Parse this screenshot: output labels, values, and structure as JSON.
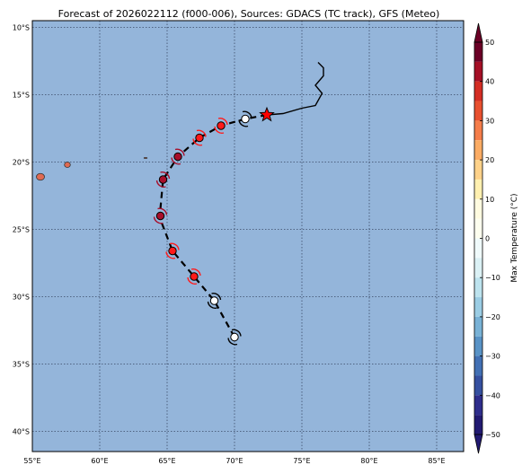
{
  "title": "Forecast of 2026022112 (f000-006), Sources: GDACS (TC track), GFS (Meteo)",
  "map": {
    "lon_range": [
      55,
      87
    ],
    "lat_range": [
      -41.5,
      -9.5
    ],
    "ocean_color": "#94b5da",
    "land_color": "#e06a52",
    "grid": "dotted",
    "x_ticks": [
      {
        "value": 55,
        "label": "55°E"
      },
      {
        "value": 60,
        "label": "60°E"
      },
      {
        "value": 65,
        "label": "65°E"
      },
      {
        "value": 70,
        "label": "70°E"
      },
      {
        "value": 75,
        "label": "75°E"
      },
      {
        "value": 80,
        "label": "80°E"
      },
      {
        "value": 85,
        "label": "85°E"
      }
    ],
    "y_ticks": [
      {
        "value": -10,
        "label": "10°S"
      },
      {
        "value": -15,
        "label": "15°S"
      },
      {
        "value": -20,
        "label": "20°S"
      },
      {
        "value": -25,
        "label": "25°S"
      },
      {
        "value": -30,
        "label": "30°S"
      },
      {
        "value": -35,
        "label": "35°S"
      },
      {
        "value": -40,
        "label": "40°S"
      }
    ],
    "islands": [
      {
        "name": "reunion",
        "lon": 55.6,
        "lat": -21.1,
        "rx": 0.3,
        "ry": 0.25
      },
      {
        "name": "mauritius",
        "lon": 57.6,
        "lat": -20.2,
        "rx": 0.22,
        "ry": 0.2
      },
      {
        "name": "rodrigues",
        "lon": 63.4,
        "lat": -19.7,
        "rx": 0.12,
        "ry": 0.04
      }
    ]
  },
  "chart_data": {
    "type": "map_track",
    "past_track": [
      {
        "lon": 76.2,
        "lat": -12.6
      },
      {
        "lon": 76.6,
        "lat": -13.0
      },
      {
        "lon": 76.6,
        "lat": -13.6
      },
      {
        "lon": 76.0,
        "lat": -14.3
      },
      {
        "lon": 76.5,
        "lat": -14.9
      },
      {
        "lon": 76.0,
        "lat": -15.8
      },
      {
        "lon": 75.0,
        "lat": -16.0
      },
      {
        "lon": 73.6,
        "lat": -16.4
      },
      {
        "lon": 72.4,
        "lat": -16.5
      }
    ],
    "forecast_track": [
      {
        "lon": 72.4,
        "lat": -16.5
      },
      {
        "lon": 70.8,
        "lat": -16.8
      },
      {
        "lon": 69.0,
        "lat": -17.3
      },
      {
        "lon": 67.4,
        "lat": -18.2
      },
      {
        "lon": 65.8,
        "lat": -19.6
      },
      {
        "lon": 64.7,
        "lat": -21.3
      },
      {
        "lon": 64.5,
        "lat": -23.5
      },
      {
        "lon": 64.4,
        "lat": -24.0
      },
      {
        "lon": 65.4,
        "lat": -26.6
      },
      {
        "lon": 67.0,
        "lat": -28.5
      },
      {
        "lon": 68.5,
        "lat": -30.3
      },
      {
        "lon": 70.0,
        "lat": -33.0
      }
    ],
    "current_position": {
      "lon": 72.4,
      "lat": -16.5,
      "marker": "star",
      "color": "#ff0000"
    },
    "forecast_points": [
      {
        "lon": 70.8,
        "lat": -16.8,
        "value": 3,
        "fill": "#ffffff"
      },
      {
        "lon": 69.0,
        "lat": -17.3,
        "value": 35,
        "fill": "#ff1a1a"
      },
      {
        "lon": 67.4,
        "lat": -18.2,
        "value": 35,
        "fill": "#ff1a1a"
      },
      {
        "lon": 65.8,
        "lat": -19.6,
        "value": 45,
        "fill": "#a80e2a"
      },
      {
        "lon": 64.7,
        "lat": -21.3,
        "value": 45,
        "fill": "#a80e2a"
      },
      {
        "lon": 64.5,
        "lat": -24.0,
        "value": 45,
        "fill": "#a80e2a"
      },
      {
        "lon": 65.4,
        "lat": -26.6,
        "value": 35,
        "fill": "#ff1a1a"
      },
      {
        "lon": 67.0,
        "lat": -28.5,
        "value": 35,
        "fill": "#ff1a1a"
      },
      {
        "lon": 68.5,
        "lat": -30.3,
        "value": 3,
        "fill": "#ffffff"
      },
      {
        "lon": 70.0,
        "lat": -33.0,
        "value": 3,
        "fill": "#ffffff"
      }
    ]
  },
  "colorbar": {
    "label": "Max Temperature (°C)",
    "range": [
      -50,
      50
    ],
    "ticks": [
      {
        "value": 50,
        "label": "50"
      },
      {
        "value": 40,
        "label": "40"
      },
      {
        "value": 30,
        "label": "30"
      },
      {
        "value": 20,
        "label": "20"
      },
      {
        "value": 10,
        "label": "10"
      },
      {
        "value": 0,
        "label": "0"
      },
      {
        "value": -10,
        "label": "−10"
      },
      {
        "value": -20,
        "label": "−20"
      },
      {
        "value": -30,
        "label": "−30"
      },
      {
        "value": -40,
        "label": "−40"
      },
      {
        "value": -50,
        "label": "−50"
      }
    ],
    "bins": [
      {
        "from": 45,
        "to": 50,
        "color": "#6b0026"
      },
      {
        "from": 40,
        "to": 45,
        "color": "#a50f26"
      },
      {
        "from": 35,
        "to": 40,
        "color": "#d42d24"
      },
      {
        "from": 30,
        "to": 35,
        "color": "#e8502f"
      },
      {
        "from": 25,
        "to": 30,
        "color": "#f57d4a"
      },
      {
        "from": 20,
        "to": 25,
        "color": "#fbac64"
      },
      {
        "from": 15,
        "to": 20,
        "color": "#fed28a"
      },
      {
        "from": 10,
        "to": 15,
        "color": "#fff0b0"
      },
      {
        "from": 5,
        "to": 10,
        "color": "#fffbe0"
      },
      {
        "from": 0,
        "to": 5,
        "color": "#fdfeef"
      },
      {
        "from": -5,
        "to": 0,
        "color": "#f0fafb"
      },
      {
        "from": -10,
        "to": -5,
        "color": "#dbf1f5"
      },
      {
        "from": -15,
        "to": -10,
        "color": "#bde3ee"
      },
      {
        "from": -20,
        "to": -15,
        "color": "#9bcde4"
      },
      {
        "from": -25,
        "to": -20,
        "color": "#79b2d6"
      },
      {
        "from": -30,
        "to": -25,
        "color": "#5993c6"
      },
      {
        "from": -35,
        "to": -30,
        "color": "#4270b4"
      },
      {
        "from": -40,
        "to": -35,
        "color": "#3550a0"
      },
      {
        "from": -45,
        "to": -40,
        "color": "#2e2d8c"
      },
      {
        "from": -50,
        "to": -45,
        "color": "#221a72"
      }
    ],
    "over_color": "#6b0026",
    "under_color": "#221a72"
  }
}
